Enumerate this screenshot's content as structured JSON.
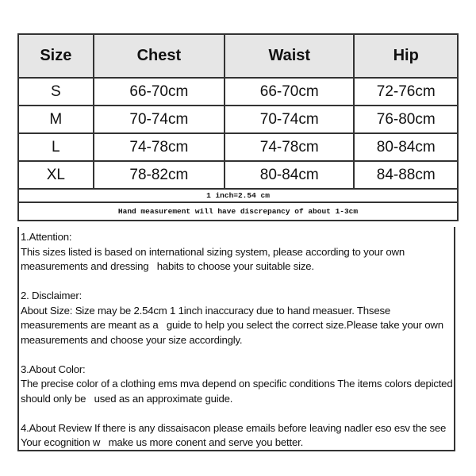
{
  "table": {
    "headers": [
      "Size",
      "Chest",
      "Waist",
      "Hip"
    ],
    "rows": [
      [
        "S",
        "66-70cm",
        "66-70cm",
        "72-76cm"
      ],
      [
        "M",
        "70-74cm",
        "70-74cm",
        "76-80cm"
      ],
      [
        "L",
        "74-78cm",
        "74-78cm",
        "80-84cm"
      ],
      [
        "XL",
        "78-82cm",
        "80-84cm",
        "84-88cm"
      ]
    ],
    "inch_note": "1 inch=2.54 cm",
    "hand_note": "Hand measurement will have discrepancy of about 1-3cm"
  },
  "notes": [
    {
      "title": "1.Attention:",
      "body": "This sizes listed is based on international sizing system, please according to your own measurements and dressing   habits to choose your suitable size."
    },
    {
      "title": "2. Disclaimer:",
      "body": "About Size: Size may be 2.54cm 1 1inch inaccuracy due to hand measuer. Thsese measurements are meant as a   guide to help you select the correct size.Please take your own measurements and choose your size accordingly."
    },
    {
      "title": "3.About Color:",
      "body": "The precise color of a clothing ems mva depend on specific conditions The items colors depicted should only be   used as an approximate guide."
    },
    {
      "title": "",
      "body": "4.About Review If there is any dissaisacon please emails before leaving nadler eso esv the see Your ecognition w   make us more conent and serve you better."
    }
  ]
}
